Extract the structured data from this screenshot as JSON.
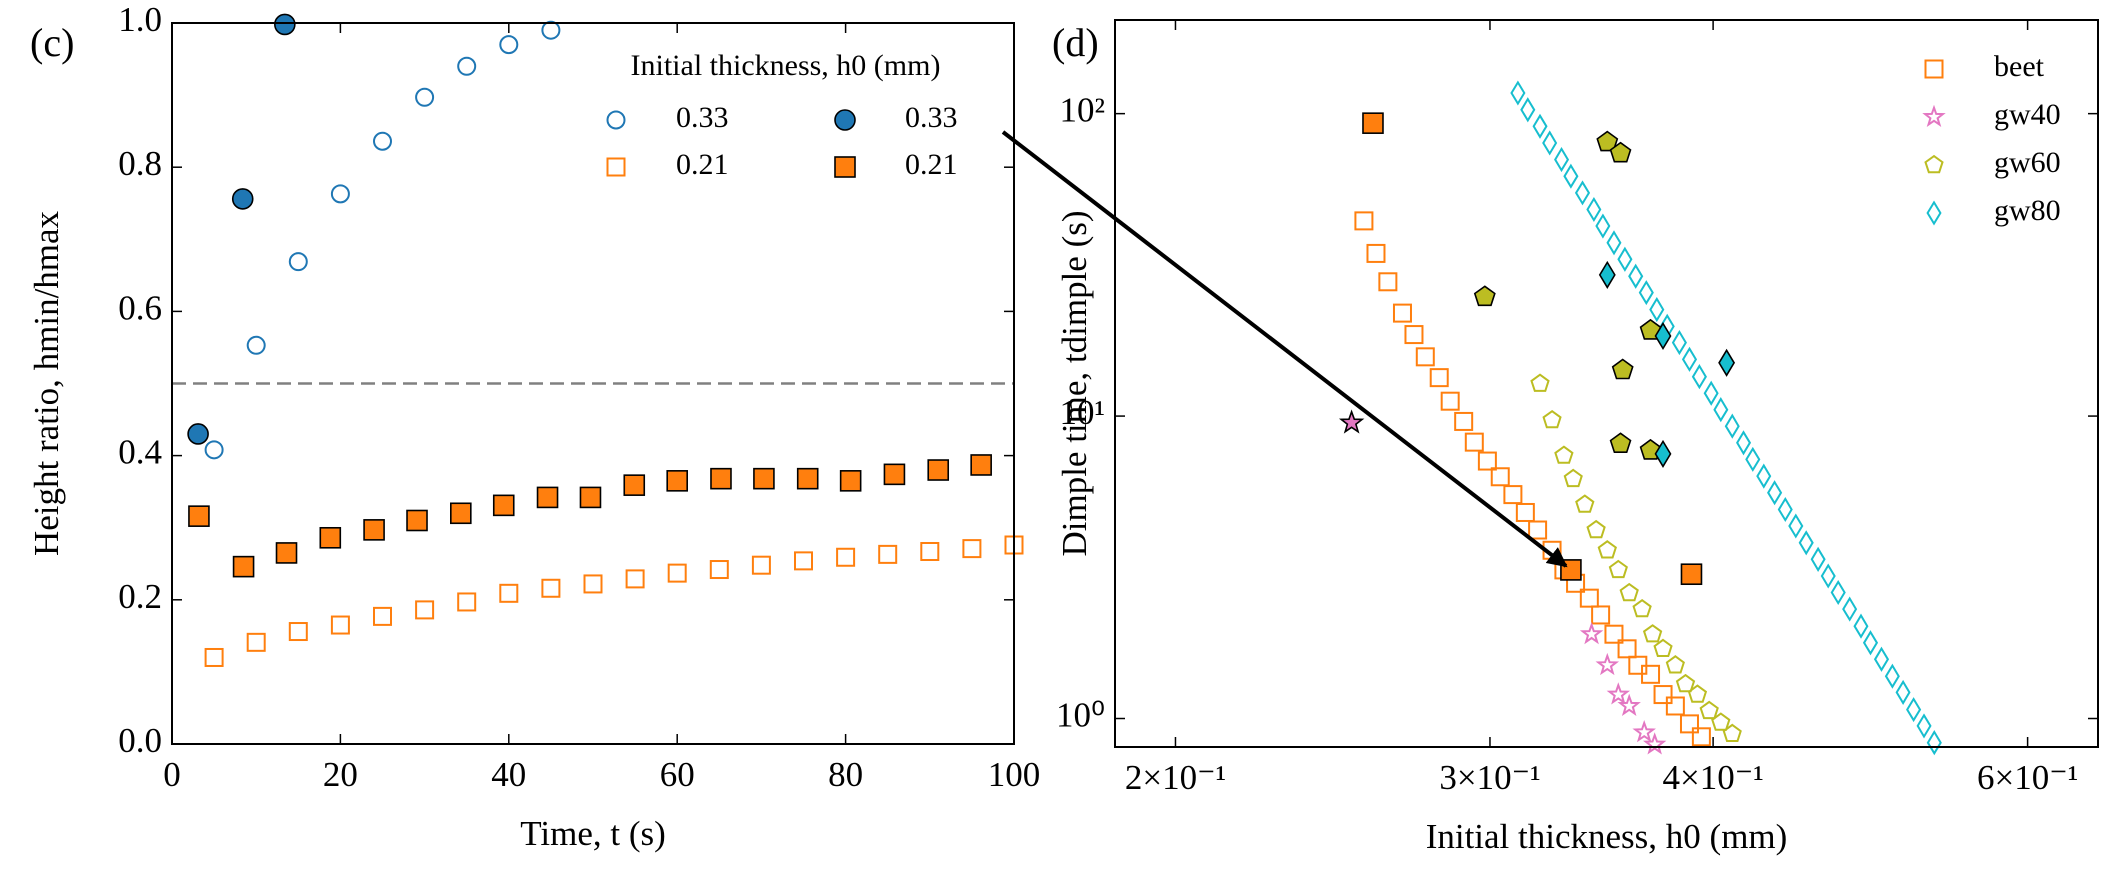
{
  "chart_data": [
    {
      "type": "scatter",
      "panel_label": "(c)",
      "xlabel": "Time, t (s)",
      "ylabel": "Height ratio, hmin/hmax",
      "xlim": [
        0,
        100
      ],
      "xticks": [
        0,
        20,
        40,
        60,
        80,
        100
      ],
      "ylim": [
        0,
        1
      ],
      "yticks": [
        {
          "value": 0,
          "label": "0.0"
        },
        0.2,
        0.4,
        0.6,
        0.8,
        {
          "value": 1,
          "label": "1.0"
        }
      ],
      "hline": 0.5,
      "legend_title": "Initial thickness, h0 (mm)",
      "legend": "upper right",
      "legend_ncol": 2,
      "series": [
        {
          "name": "0.33",
          "color": "#1f77b4",
          "marker": "circle",
          "filled": false,
          "x": [
            5,
            10,
            15,
            20,
            25,
            30,
            35,
            40,
            45
          ],
          "values": [
            0.408,
            0.553,
            0.669,
            0.763,
            0.836,
            0.897,
            0.94,
            0.97,
            0.99
          ]
        },
        {
          "name": "0.21",
          "color": "#ff7f0e",
          "marker": "square",
          "filled": false,
          "x": [
            5,
            10,
            15,
            20,
            25,
            30,
            35,
            40,
            45,
            50,
            55,
            60,
            65,
            70,
            75,
            80,
            85,
            90,
            95,
            100
          ],
          "values": [
            0.12,
            0.141,
            0.156,
            0.165,
            0.177,
            0.186,
            0.197,
            0.209,
            0.216,
            0.222,
            0.229,
            0.237,
            0.242,
            0.248,
            0.254,
            0.259,
            0.263,
            0.267,
            0.271,
            0.276
          ]
        },
        {
          "name": "0.33",
          "color": "#1f77b4",
          "marker": "circle",
          "filled": true,
          "x": [
            3.1,
            8.4,
            13.4
          ],
          "values": [
            0.43,
            0.756,
            0.998
          ]
        },
        {
          "name": "0.21",
          "color": "#ff7f0e",
          "marker": "square",
          "filled": true,
          "x": [
            3.2,
            8.5,
            13.6,
            18.8,
            24,
            29.1,
            34.3,
            39.4,
            44.6,
            49.7,
            54.9,
            60,
            65.2,
            70.3,
            75.5,
            80.6,
            85.8,
            91,
            96.1
          ],
          "values": [
            0.316,
            0.246,
            0.265,
            0.286,
            0.297,
            0.31,
            0.32,
            0.331,
            0.342,
            0.342,
            0.359,
            0.365,
            0.368,
            0.368,
            0.368,
            0.365,
            0.374,
            0.38,
            0.387
          ]
        }
      ]
    },
    {
      "type": "scatter",
      "panel_label": "(d)",
      "xlabel": "Initial thickness, h0 (mm)",
      "ylabel": "Dimple time, tdimple (s)",
      "xscale": "log",
      "yscale": "log",
      "xlim": [
        0.185,
        0.657
      ],
      "xticks": [
        {
          "value": 0.2,
          "label": "2×10⁻¹"
        },
        {
          "value": 0.3,
          "label": "3×10⁻¹"
        },
        {
          "value": 0.4,
          "label": "4×10⁻¹"
        },
        {
          "value": 0.6,
          "label": "6×10⁻¹"
        }
      ],
      "ylim": [
        0.805,
        204
      ],
      "yticks": [
        {
          "value": 1,
          "label": "10⁰"
        },
        {
          "value": 10,
          "label": "10¹"
        },
        {
          "value": 100,
          "label": "10²"
        }
      ],
      "legend": "upper right",
      "legend_ncol": 1,
      "series": [
        {
          "name": "beet",
          "color": "#ff7f0e",
          "marker": "square",
          "filled": false,
          "x": [
            0.255,
            0.259,
            0.263,
            0.268,
            0.272,
            0.276,
            0.281,
            0.285,
            0.29,
            0.294,
            0.299,
            0.304,
            0.309,
            0.314,
            0.319,
            0.325,
            0.33,
            0.335,
            0.341,
            0.346,
            0.352,
            0.358,
            0.363,
            0.369,
            0.375,
            0.381,
            0.388,
            0.394
          ],
          "values": [
            44.2,
            34.5,
            27.8,
            21.9,
            18.6,
            15.7,
            13.4,
            11.2,
            9.6,
            8.2,
            7.1,
            6.3,
            5.5,
            4.8,
            4.2,
            3.6,
            3.1,
            2.8,
            2.5,
            2.2,
            1.9,
            1.7,
            1.5,
            1.4,
            1.2,
            1.1,
            0.96,
            0.87
          ]
        },
        {
          "name": "gw40",
          "color": "#e377c2",
          "marker": "star",
          "filled": false,
          "x": [
            0.342,
            0.349,
            0.354,
            0.359,
            0.366,
            0.371
          ],
          "values": [
            1.9,
            1.5,
            1.2,
            1.1,
            0.9,
            0.82
          ]
        },
        {
          "name": "gw60",
          "color": "#bcbd22",
          "marker": "pentagon",
          "filled": false,
          "x": [
            0.32,
            0.325,
            0.33,
            0.334,
            0.339,
            0.344,
            0.349,
            0.354,
            0.359,
            0.365,
            0.37,
            0.375,
            0.381,
            0.386,
            0.392,
            0.398,
            0.404,
            0.41
          ],
          "values": [
            12.8,
            9.7,
            7.4,
            6.2,
            5.1,
            4.2,
            3.6,
            3.1,
            2.6,
            2.3,
            1.9,
            1.7,
            1.5,
            1.3,
            1.2,
            1.06,
            0.97,
            0.89
          ]
        },
        {
          "name": "gw80",
          "color": "#17becf",
          "marker": "diamond",
          "filled": false,
          "x": [
            0.311,
            0.315,
            0.32,
            0.324,
            0.329,
            0.333,
            0.338,
            0.343,
            0.347,
            0.352,
            0.357,
            0.362,
            0.367,
            0.372,
            0.377,
            0.383,
            0.388,
            0.393,
            0.399,
            0.404,
            0.41,
            0.416,
            0.421,
            0.427,
            0.433,
            0.439,
            0.445,
            0.451,
            0.458,
            0.464,
            0.47,
            0.477,
            0.484,
            0.49,
            0.497,
            0.504,
            0.511,
            0.518,
            0.525,
            0.532
          ],
          "values": [
            117,
            103,
            90.8,
            80,
            70.5,
            62.1,
            54.7,
            48.2,
            42.5,
            37.4,
            33,
            29,
            25.6,
            22.5,
            19.8,
            17.5,
            15.4,
            13.5,
            11.9,
            10.5,
            9.26,
            8.16,
            7.19,
            6.33,
            5.58,
            4.91,
            4.33,
            3.81,
            3.36,
            2.96,
            2.61,
            2.3,
            2.02,
            1.78,
            1.57,
            1.38,
            1.22,
            1.07,
            0.945,
            0.832
          ]
        },
        {
          "color": "#ff7f0e",
          "marker": "square",
          "filled": true,
          "x": [
            0.258,
            0.333,
            0.389
          ],
          "values": [
            93,
            3.1,
            3
          ]
        },
        {
          "color": "#e377c2",
          "marker": "star",
          "filled": true,
          "x": [
            0.251
          ],
          "values": [
            9.5
          ]
        },
        {
          "color": "#bcbd22",
          "marker": "pentagon",
          "filled": true,
          "x": [
            0.298,
            0.349,
            0.355,
            0.369,
            0.356,
            0.355,
            0.369
          ],
          "values": [
            24.8,
            80.5,
            74,
            19.2,
            14.2,
            8.1,
            7.7
          ]
        },
        {
          "color": "#17becf",
          "marker": "diamond",
          "filled": true,
          "x": [
            0.349,
            0.375,
            0.407,
            0.375
          ],
          "values": [
            29.3,
            18.4,
            15,
            7.5
          ]
        }
      ]
    }
  ]
}
